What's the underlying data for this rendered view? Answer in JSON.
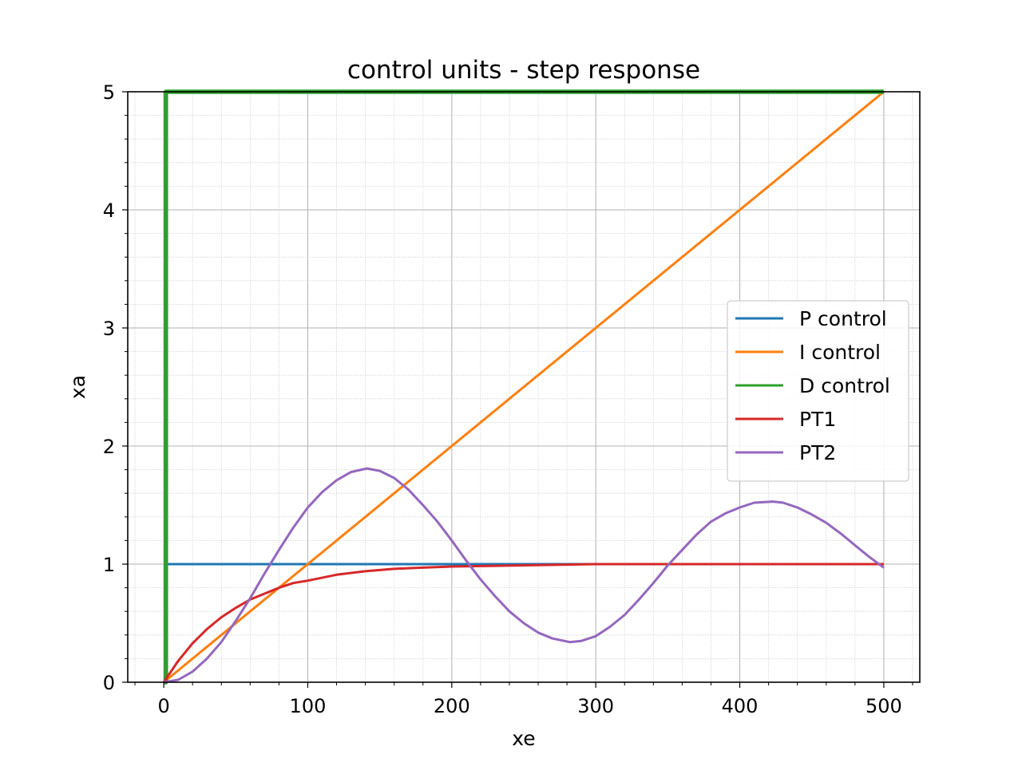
{
  "chart_data": {
    "type": "line",
    "title": "control units - step response",
    "xlabel": "xe",
    "ylabel": "xa",
    "xlim": [
      -25,
      525
    ],
    "ylim": [
      0,
      5
    ],
    "xticks": [
      0,
      100,
      200,
      300,
      400,
      500
    ],
    "xtick_labels": [
      "0",
      "100",
      "200",
      "300",
      "400",
      "500"
    ],
    "yticks": [
      0,
      1,
      2,
      3,
      4,
      5
    ],
    "ytick_labels": [
      "0",
      "1",
      "2",
      "3",
      "4",
      "5"
    ],
    "grid": true,
    "minor_grid": true,
    "legend_position": "center-right",
    "series": [
      {
        "name": "P control",
        "color": "#1f77b4",
        "x": [
          3,
          500
        ],
        "y": [
          1,
          1
        ]
      },
      {
        "name": "I control",
        "color": "#ff7f0e",
        "x": [
          0,
          500
        ],
        "y": [
          0,
          5
        ]
      },
      {
        "name": "D control",
        "color": "#2ca02c",
        "x": [
          0,
          1.5,
          1.5,
          500
        ],
        "y": [
          0,
          0,
          5,
          5
        ],
        "note_visible": "vertical spike at x≈1.5 and flat line along y=0"
      },
      {
        "name": "PT1",
        "color": "#d62728",
        "x": [
          0,
          10,
          20,
          30,
          40,
          50,
          60,
          70,
          80,
          90,
          100,
          120,
          140,
          160,
          180,
          200,
          250,
          300,
          350,
          400,
          450,
          500
        ],
        "y": [
          0,
          0.18,
          0.33,
          0.45,
          0.55,
          0.63,
          0.7,
          0.75,
          0.8,
          0.84,
          0.86,
          0.91,
          0.94,
          0.96,
          0.97,
          0.98,
          0.99,
          1.0,
          1.0,
          1.0,
          1.0,
          1.0
        ]
      },
      {
        "name": "PT2",
        "color": "#9467bd",
        "x": [
          0,
          10,
          20,
          30,
          40,
          50,
          60,
          70,
          80,
          90,
          100,
          110,
          120,
          130,
          141,
          150,
          160,
          170,
          180,
          190,
          200,
          210,
          220,
          230,
          240,
          250,
          260,
          270,
          282,
          290,
          300,
          310,
          320,
          330,
          340,
          350,
          360,
          370,
          380,
          390,
          400,
          410,
          423,
          430,
          440,
          450,
          460,
          470,
          480,
          490,
          500
        ],
        "y": [
          0,
          0.02,
          0.09,
          0.2,
          0.34,
          0.52,
          0.71,
          0.92,
          1.12,
          1.31,
          1.48,
          1.61,
          1.71,
          1.78,
          1.81,
          1.79,
          1.73,
          1.63,
          1.5,
          1.36,
          1.2,
          1.03,
          0.87,
          0.73,
          0.6,
          0.5,
          0.42,
          0.37,
          0.34,
          0.35,
          0.39,
          0.47,
          0.57,
          0.7,
          0.84,
          0.99,
          1.12,
          1.25,
          1.36,
          1.43,
          1.48,
          1.52,
          1.53,
          1.52,
          1.48,
          1.42,
          1.35,
          1.26,
          1.16,
          1.06,
          0.97
        ]
      }
    ]
  }
}
